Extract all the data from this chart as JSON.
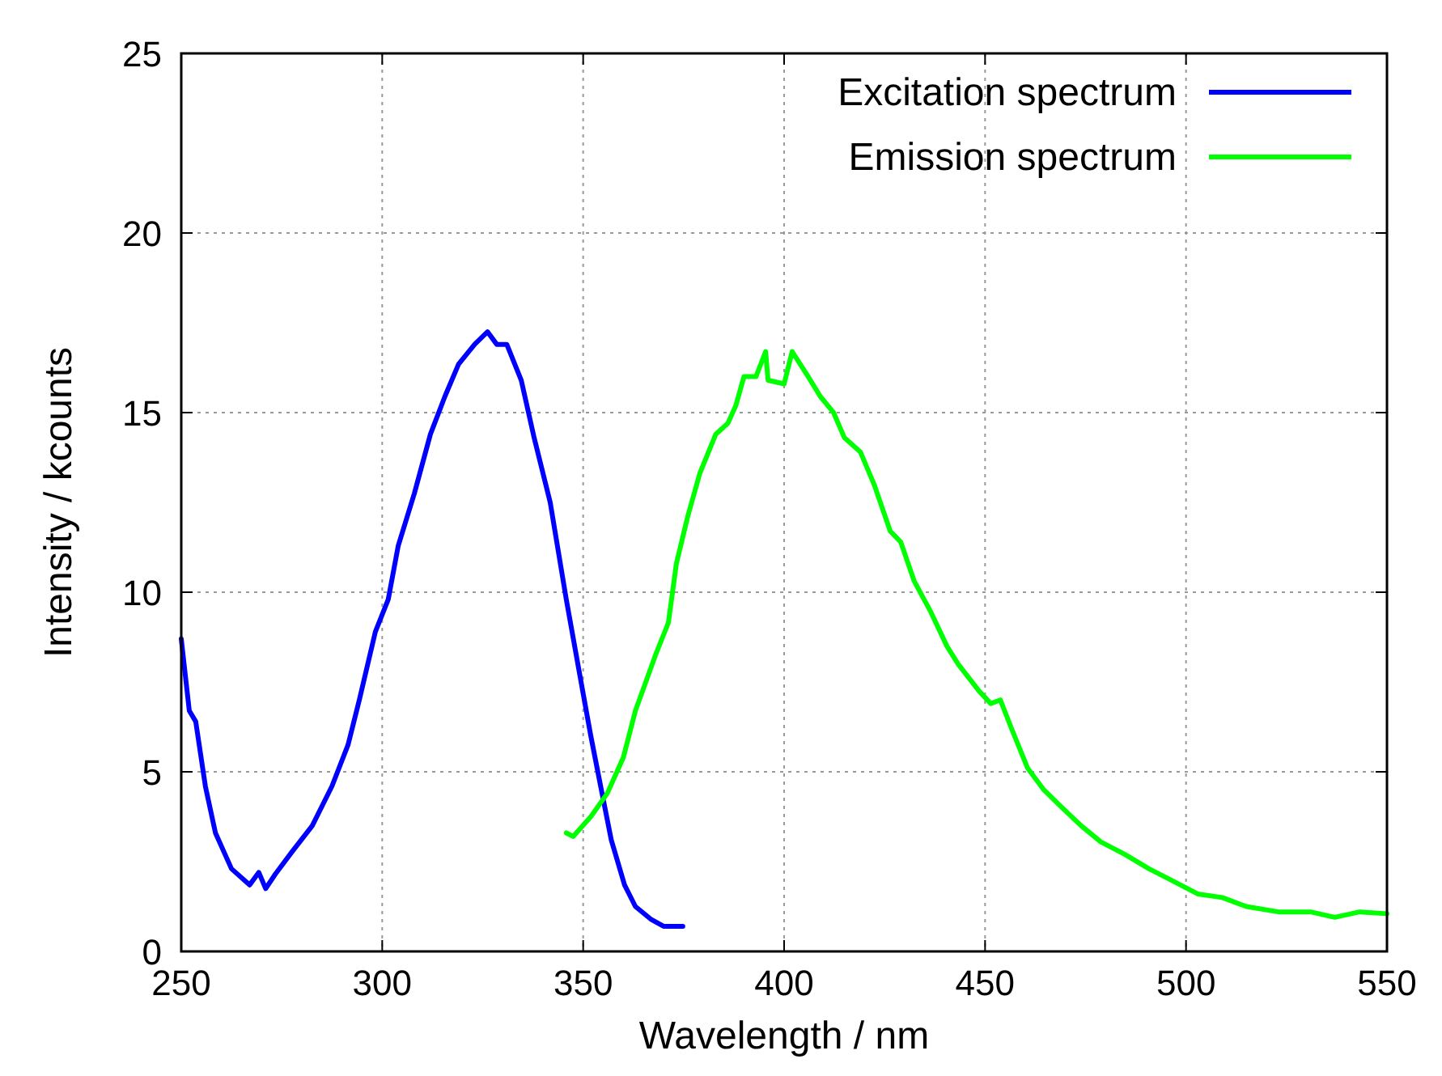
{
  "chart_data": {
    "type": "line",
    "xlabel": "Wavelength / nm",
    "ylabel": "Intensity / kcounts",
    "xlim": [
      250,
      550
    ],
    "ylim": [
      0,
      25
    ],
    "xticks": [
      250,
      300,
      350,
      400,
      450,
      500,
      550
    ],
    "yticks": [
      0,
      5,
      10,
      15,
      20,
      25
    ],
    "grid": true,
    "legend": "top right",
    "marker": "none",
    "line_style": "solid",
    "series": [
      {
        "name": "Excitation spectrum",
        "color": "#0000ff",
        "x": [
          250,
          252,
          253.6,
          256,
          258.5,
          262.5,
          267,
          269.3,
          271,
          273.4,
          277.4,
          282.6,
          287.5,
          291.5,
          294.3,
          298.3,
          301.5,
          304,
          308,
          312,
          315.6,
          319,
          323,
          326.2,
          328.5,
          331,
          334.6,
          337.8,
          341.8,
          345.8,
          349,
          351.9,
          354.7,
          357,
          360.3,
          363,
          366.8,
          370,
          374.8
        ],
        "values": [
          8.7,
          6.7,
          6.4,
          4.6,
          3.3,
          2.3,
          1.85,
          2.2,
          1.75,
          2.15,
          2.75,
          3.5,
          4.6,
          5.75,
          7.0,
          8.9,
          9.8,
          11.3,
          12.75,
          14.4,
          15.45,
          16.35,
          16.9,
          17.25,
          16.9,
          16.9,
          15.9,
          14.3,
          12.5,
          9.8,
          7.8,
          6.0,
          4.4,
          3.1,
          1.85,
          1.25,
          0.9,
          0.7,
          0.7
        ]
      },
      {
        "name": "Emission spectrum",
        "color": "#00ff00",
        "x": [
          345.8,
          347.5,
          351.9,
          356,
          360,
          363,
          368,
          371.2,
          373.2,
          376,
          379,
          383,
          386,
          388,
          390,
          393,
          395.4,
          396,
          400,
          402,
          406,
          409,
          412.3,
          415,
          419,
          422.4,
          426.4,
          429,
          432.4,
          436.5,
          440.5,
          443.3,
          448.5,
          451.4,
          453.8,
          456.6,
          460.6,
          464.6,
          468.7,
          473.9,
          478.8,
          484.8,
          490.8,
          496.9,
          502.9,
          509,
          515,
          523,
          531,
          537,
          543.2,
          550
        ],
        "values": [
          3.3,
          3.2,
          3.75,
          4.4,
          5.4,
          6.7,
          8.25,
          9.15,
          10.8,
          12.1,
          13.3,
          14.4,
          14.7,
          15.2,
          16.0,
          16.0,
          16.7,
          15.9,
          15.8,
          16.7,
          16.0,
          15.45,
          15.0,
          14.3,
          13.9,
          13.0,
          11.7,
          11.4,
          10.3,
          9.45,
          8.5,
          8.0,
          7.25,
          6.9,
          7.0,
          6.2,
          5.1,
          4.5,
          4.05,
          3.5,
          3.05,
          2.7,
          2.3,
          1.95,
          1.6,
          1.5,
          1.25,
          1.1,
          1.1,
          0.95,
          1.1,
          1.05
        ]
      }
    ]
  }
}
